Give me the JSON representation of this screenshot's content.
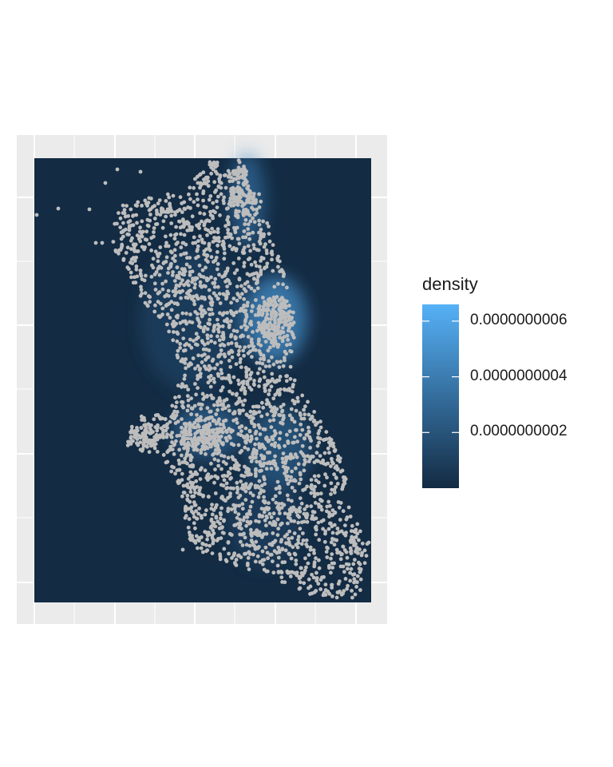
{
  "chart_data": {
    "type": "heatmap",
    "title": "",
    "xlabel": "",
    "ylabel": "",
    "grid": true,
    "legend": {
      "title": "density",
      "position": "right",
      "range": [
        0,
        6.6e-10
      ],
      "ticks": [
        {
          "value": 2e-10,
          "label": "0.0000000002"
        },
        {
          "value": 4e-10,
          "label": "0.0000000004"
        },
        {
          "value": 6e-10,
          "label": "0.0000000006"
        }
      ],
      "low_color": "#132B43",
      "high_color": "#56B1F7"
    },
    "layers": [
      "density raster",
      "points"
    ],
    "point_color": "#bdbdbd",
    "panel_background": "#ebebeb",
    "grid_color": "#ffffff"
  }
}
